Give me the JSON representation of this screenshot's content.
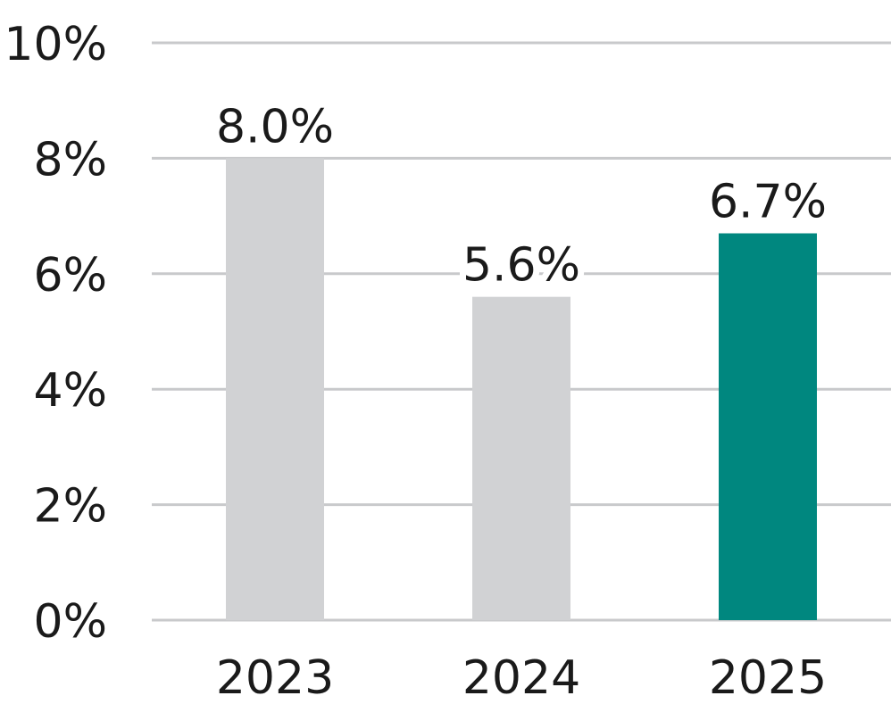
{
  "chart_data": {
    "type": "bar",
    "title": "",
    "xlabel": "",
    "ylabel": "",
    "categories": [
      "2023",
      "2024",
      "2025"
    ],
    "values": [
      8.0,
      5.6,
      6.7
    ],
    "data_labels": [
      "8.0%",
      "5.6%",
      "6.7%"
    ],
    "ylim": [
      0,
      10
    ],
    "yticks": [
      0,
      2,
      4,
      6,
      8,
      10
    ],
    "ytick_labels": [
      "0%",
      "2%",
      "4%",
      "6%",
      "8%",
      "10%"
    ],
    "grid": true,
    "legend": "none",
    "bar_colors": [
      "#d1d2d4",
      "#d1d2d4",
      "#00877f"
    ],
    "gridline_color": "#c8c9cb",
    "text_color": "#1a1a1a"
  }
}
